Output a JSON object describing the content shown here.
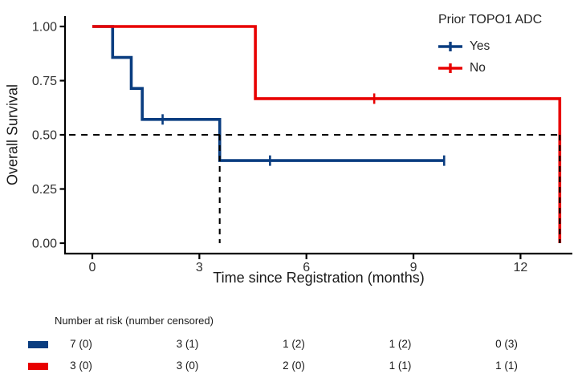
{
  "figure": {
    "background": "#ffffff",
    "text_color": "#303030",
    "axis_color": "#000000"
  },
  "chart_data": {
    "type": "line",
    "subtype": "kaplan_meier_step_survival",
    "title": "",
    "xlabel": "Time since Registration (months)",
    "ylabel": "Overall Survival",
    "xlim": [
      0,
      13.5
    ],
    "ylim": [
      0,
      1.0
    ],
    "grid": "off",
    "xticks": [
      {
        "v": 0,
        "label": "0"
      },
      {
        "v": 3,
        "label": "3"
      },
      {
        "v": 6,
        "label": "6"
      },
      {
        "v": 9,
        "label": "9"
      },
      {
        "v": 12,
        "label": "12"
      }
    ],
    "yticks": [
      {
        "v": 0.0,
        "label": "0.00"
      },
      {
        "v": 0.25,
        "label": "0.25"
      },
      {
        "v": 0.5,
        "label": "0.50"
      },
      {
        "v": 0.75,
        "label": "0.75"
      },
      {
        "v": 1.0,
        "label": "1.00"
      }
    ],
    "legend": {
      "title": "Prior TOPO1 ADC",
      "position": "top-right",
      "entries": [
        {
          "label": "Yes",
          "color": "#0A3D80"
        },
        {
          "label": "No",
          "color": "#E80000"
        }
      ]
    },
    "series": [
      {
        "name": "Yes",
        "color": "#0A3D80",
        "steps": [
          [
            0,
            1.0
          ],
          [
            0.57,
            1.0
          ],
          [
            0.57,
            0.857
          ],
          [
            1.09,
            0.857
          ],
          [
            1.09,
            0.714
          ],
          [
            1.4,
            0.714
          ],
          [
            1.4,
            0.571
          ],
          [
            3.57,
            0.571
          ],
          [
            3.57,
            0.381
          ],
          [
            9.86,
            0.381
          ]
        ],
        "censors": [
          [
            1.97,
            0.571
          ],
          [
            4.98,
            0.381
          ],
          [
            9.86,
            0.381
          ]
        ]
      },
      {
        "name": "No",
        "color": "#E80000",
        "steps": [
          [
            0,
            1.0
          ],
          [
            4.57,
            1.0
          ],
          [
            4.57,
            0.667
          ],
          [
            13.1,
            0.667
          ],
          [
            13.1,
            0.0
          ]
        ],
        "censors": [
          [
            7.9,
            0.667
          ]
        ]
      }
    ],
    "median_reference": {
      "y": 0.5,
      "h_from_x": -0.65,
      "h_to_x": 13.1,
      "verticals": [
        3.57,
        13.1
      ],
      "line_color": "#000000"
    }
  },
  "risk_table": {
    "title": "Number at risk (number censored)",
    "columns": [
      0,
      3,
      6,
      9,
      12
    ],
    "rows": [
      {
        "series": "Yes",
        "color": "#0A3D80",
        "values": [
          "7 (0)",
          "3 (1)",
          "1 (2)",
          "1 (2)",
          "0 (3)"
        ]
      },
      {
        "series": "No",
        "color": "#E80000",
        "values": [
          "3 (0)",
          "3 (0)",
          "2 (0)",
          "1 (1)",
          "1 (1)"
        ]
      }
    ]
  }
}
